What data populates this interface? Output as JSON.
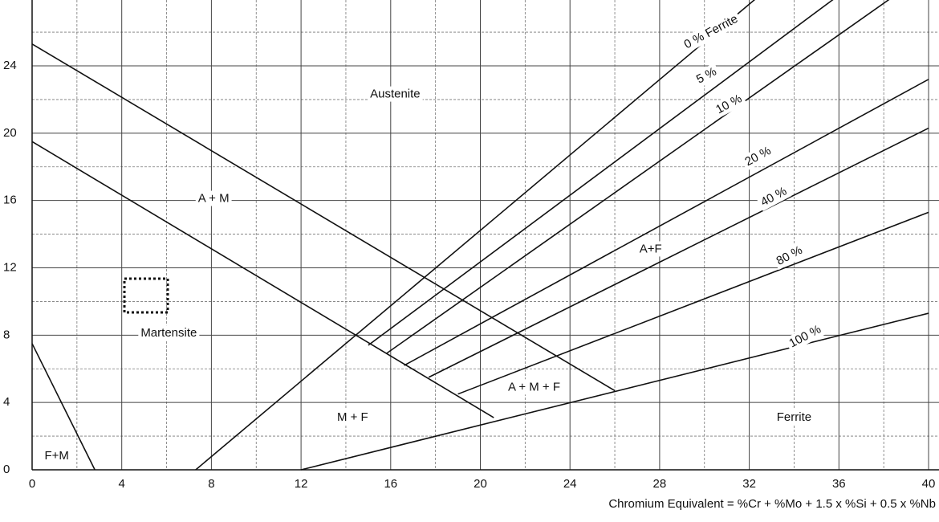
{
  "chart_data": {
    "type": "line",
    "x_label": "Chromium Equivalent = %Cr + %Mo + 1.5 x %Si + 0.5 x %Nb",
    "xlim": [
      0,
      40
    ],
    "ylim": [
      0,
      28
    ],
    "xticks": [
      0,
      4,
      8,
      12,
      16,
      20,
      24,
      28,
      32,
      36,
      40
    ],
    "yticks": [
      0,
      4,
      8,
      12,
      16,
      20,
      24
    ],
    "minor_xticks": [
      2,
      6,
      10,
      14,
      18,
      22,
      26,
      30,
      34,
      38
    ],
    "minor_yticks": [
      2,
      6,
      10,
      14,
      18,
      22,
      26
    ],
    "grid": true,
    "series": [
      {
        "color": "#111111",
        "x": [
          0,
          26
        ],
        "values": [
          25.3,
          4.7
        ]
      },
      {
        "color": "#111111",
        "x": [
          0,
          20.6
        ],
        "values": [
          19.5,
          3.1
        ]
      },
      {
        "color": "#111111",
        "x": [
          0,
          2.8
        ],
        "values": [
          7.5,
          0
        ]
      },
      {
        "color": "#111111",
        "x": [
          7.3,
          32.3
        ],
        "values": [
          0,
          28
        ]
      },
      {
        "color": "#111111",
        "x": [
          15.0,
          35.8
        ],
        "values": [
          7.4,
          28
        ]
      },
      {
        "color": "#111111",
        "x": [
          15.8,
          38.3
        ],
        "values": [
          6.9,
          28
        ]
      },
      {
        "color": "#111111",
        "x": [
          16.6,
          40
        ],
        "values": [
          6.2,
          23.2
        ]
      },
      {
        "color": "#111111",
        "x": [
          17.7,
          40
        ],
        "values": [
          5.5,
          20.3
        ]
      },
      {
        "color": "#111111",
        "x": [
          19.0,
          40
        ],
        "values": [
          4.5,
          15.3
        ]
      },
      {
        "color": "#111111",
        "x": [
          12.0,
          40
        ],
        "values": [
          0,
          9.3
        ]
      }
    ],
    "annotations": [
      {
        "text": "Austenite",
        "x": 16.2,
        "y": 22.3
      },
      {
        "text": "A + M",
        "x": 8.1,
        "y": 16.1
      },
      {
        "text": "Martensite",
        "x": 6.1,
        "y": 8.1
      },
      {
        "text": "M + F",
        "x": 14.3,
        "y": 3.1
      },
      {
        "text": "A + M + F",
        "x": 22.4,
        "y": 4.9
      },
      {
        "text": "A+F",
        "x": 27.6,
        "y": 13.1
      },
      {
        "text": "Ferrite",
        "x": 34.0,
        "y": 3.1
      },
      {
        "text": "F+M",
        "x": 1.1,
        "y": 0.8
      }
    ],
    "line_labels": [
      {
        "text": "0 % Ferrite",
        "x": 30.3,
        "y": 26.0
      },
      {
        "text": "5 %",
        "x": 30.1,
        "y": 23.4
      },
      {
        "text": "10 %",
        "x": 31.1,
        "y": 21.7
      },
      {
        "text": "20 %",
        "x": 32.4,
        "y": 18.6
      },
      {
        "text": "40 %",
        "x": 33.1,
        "y": 16.2
      },
      {
        "text": "80 %",
        "x": 33.8,
        "y": 12.7
      },
      {
        "text": "100 %",
        "x": 34.5,
        "y": 7.9
      }
    ]
  }
}
